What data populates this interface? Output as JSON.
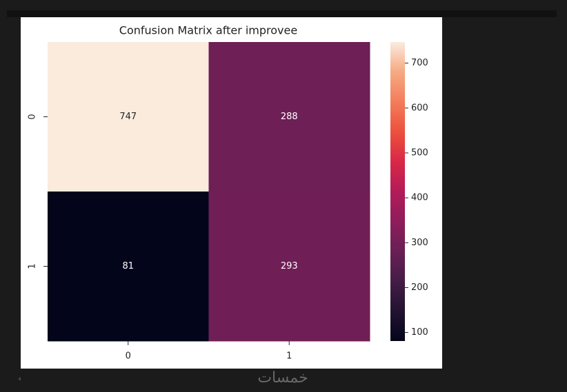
{
  "chart_data": {
    "type": "heatmap",
    "title": "Confusion Matrix after improvee",
    "x": [
      "0",
      "1"
    ],
    "y": [
      "0",
      "1"
    ],
    "values": [
      [
        747,
        288
      ],
      [
        81,
        293
      ]
    ],
    "cmap": "rocket",
    "zlim": [
      81,
      747
    ],
    "zticks": [
      100,
      200,
      300,
      400,
      500,
      600,
      700
    ],
    "annotate": true
  },
  "watermark": "خمسات"
}
